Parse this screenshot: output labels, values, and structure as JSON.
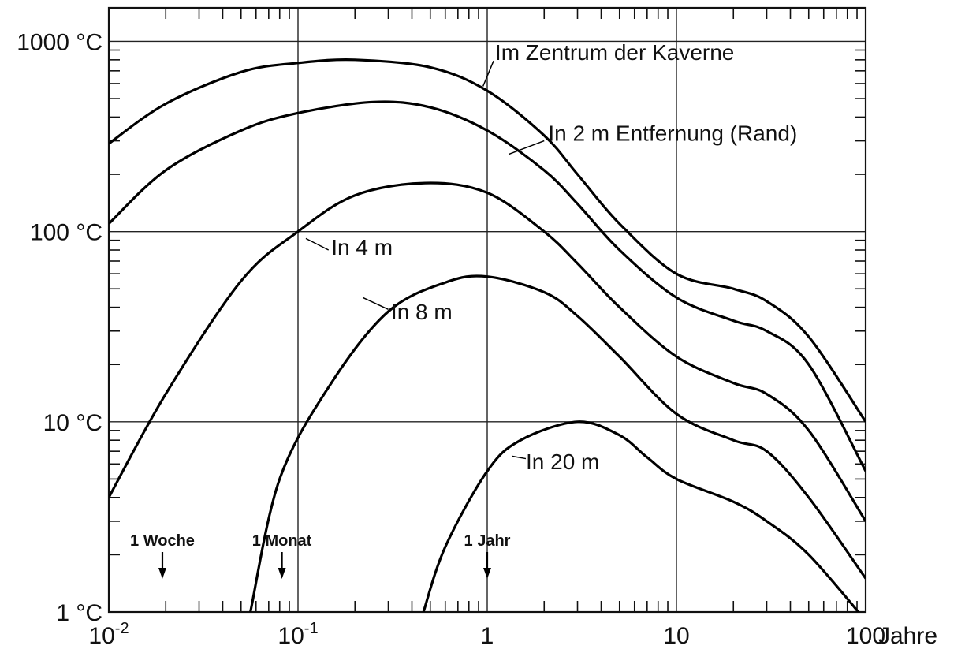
{
  "chart_data": {
    "type": "line",
    "title": "",
    "xscale": "log",
    "yscale": "log",
    "xlim": [
      0.01,
      100
    ],
    "ylim": [
      1,
      1500
    ],
    "grid": true,
    "x_ticks": [
      {
        "value": 0.01,
        "base": "10",
        "exp": "-2",
        "text": ""
      },
      {
        "value": 0.1,
        "base": "10",
        "exp": "-1",
        "text": ""
      },
      {
        "value": 1,
        "base": "",
        "exp": "",
        "text": "1"
      },
      {
        "value": 10,
        "base": "",
        "exp": "",
        "text": "10"
      },
      {
        "value": 100,
        "base": "",
        "exp": "",
        "text": "100"
      }
    ],
    "x_unit": "Jahre",
    "y_ticks": [
      {
        "value": 1,
        "text": "1 °C"
      },
      {
        "value": 10,
        "text": "10 °C"
      },
      {
        "value": 100,
        "text": "100 °C"
      },
      {
        "value": 1000,
        "text": "1000 °C"
      }
    ],
    "series": [
      {
        "name": "Im Zentrum der Kaverne",
        "label_at": [
          1.1,
          880
        ],
        "leader": [
          [
            0.95,
            580
          ],
          [
            1.08,
            790
          ]
        ],
        "points": [
          [
            0.01,
            290
          ],
          [
            0.02,
            470
          ],
          [
            0.05,
            690
          ],
          [
            0.1,
            770
          ],
          [
            0.2,
            800
          ],
          [
            0.5,
            730
          ],
          [
            1,
            550
          ],
          [
            2,
            320
          ],
          [
            3,
            200
          ],
          [
            5,
            110
          ],
          [
            10,
            60
          ],
          [
            20,
            50
          ],
          [
            30,
            43
          ],
          [
            50,
            28
          ],
          [
            100,
            10
          ]
        ]
      },
      {
        "name": "In 2 m Entfernung (Rand)",
        "label_at": [
          2.1,
          330
        ],
        "leader": [
          [
            1.3,
            255
          ],
          [
            2.0,
            300
          ]
        ],
        "points": [
          [
            0.01,
            110
          ],
          [
            0.02,
            210
          ],
          [
            0.05,
            340
          ],
          [
            0.1,
            420
          ],
          [
            0.25,
            480
          ],
          [
            0.5,
            450
          ],
          [
            1,
            340
          ],
          [
            2,
            210
          ],
          [
            3,
            140
          ],
          [
            5,
            80
          ],
          [
            10,
            45
          ],
          [
            20,
            34
          ],
          [
            30,
            30
          ],
          [
            50,
            20
          ],
          [
            100,
            5.5
          ]
        ]
      },
      {
        "name": "In 4 m",
        "label_at": [
          0.15,
          83
        ],
        "leader": [
          [
            0.11,
            92
          ],
          [
            0.145,
            80
          ]
        ],
        "points": [
          [
            0.01,
            4
          ],
          [
            0.02,
            14
          ],
          [
            0.05,
            55
          ],
          [
            0.1,
            100
          ],
          [
            0.2,
            155
          ],
          [
            0.47,
            180
          ],
          [
            1,
            160
          ],
          [
            2,
            100
          ],
          [
            3,
            68
          ],
          [
            5,
            40
          ],
          [
            10,
            22
          ],
          [
            20,
            16
          ],
          [
            30,
            14
          ],
          [
            50,
            9
          ],
          [
            100,
            3
          ]
        ]
      },
      {
        "name": "In 8 m",
        "label_at": [
          0.31,
          38
        ],
        "leader": [
          [
            0.22,
            45
          ],
          [
            0.3,
            39
          ]
        ],
        "points": [
          [
            0.056,
            1
          ],
          [
            0.08,
            5
          ],
          [
            0.15,
            16
          ],
          [
            0.3,
            38
          ],
          [
            0.6,
            54
          ],
          [
            1,
            58
          ],
          [
            2,
            48
          ],
          [
            3,
            36
          ],
          [
            5,
            22
          ],
          [
            10,
            11
          ],
          [
            20,
            8
          ],
          [
            30,
            7
          ],
          [
            50,
            4
          ],
          [
            100,
            1.5
          ]
        ]
      },
      {
        "name": "In 20 m",
        "label_at": [
          1.6,
          6.2
        ],
        "leader": [
          [
            1.35,
            6.6
          ],
          [
            1.6,
            6.4
          ]
        ],
        "points": [
          [
            0.46,
            1
          ],
          [
            0.6,
            2.2
          ],
          [
            1,
            5.5
          ],
          [
            1.5,
            8
          ],
          [
            3,
            10
          ],
          [
            5,
            8.5
          ],
          [
            7,
            6.5
          ],
          [
            10,
            5
          ],
          [
            20,
            3.8
          ],
          [
            30,
            3
          ],
          [
            50,
            2
          ],
          [
            100,
            0.9
          ]
        ]
      }
    ],
    "markers": [
      {
        "label": "1 Woche",
        "x": 0.0192
      },
      {
        "label": "1 Monat",
        "x": 0.0822
      },
      {
        "label": "1 Jahr",
        "x": 1
      }
    ]
  }
}
